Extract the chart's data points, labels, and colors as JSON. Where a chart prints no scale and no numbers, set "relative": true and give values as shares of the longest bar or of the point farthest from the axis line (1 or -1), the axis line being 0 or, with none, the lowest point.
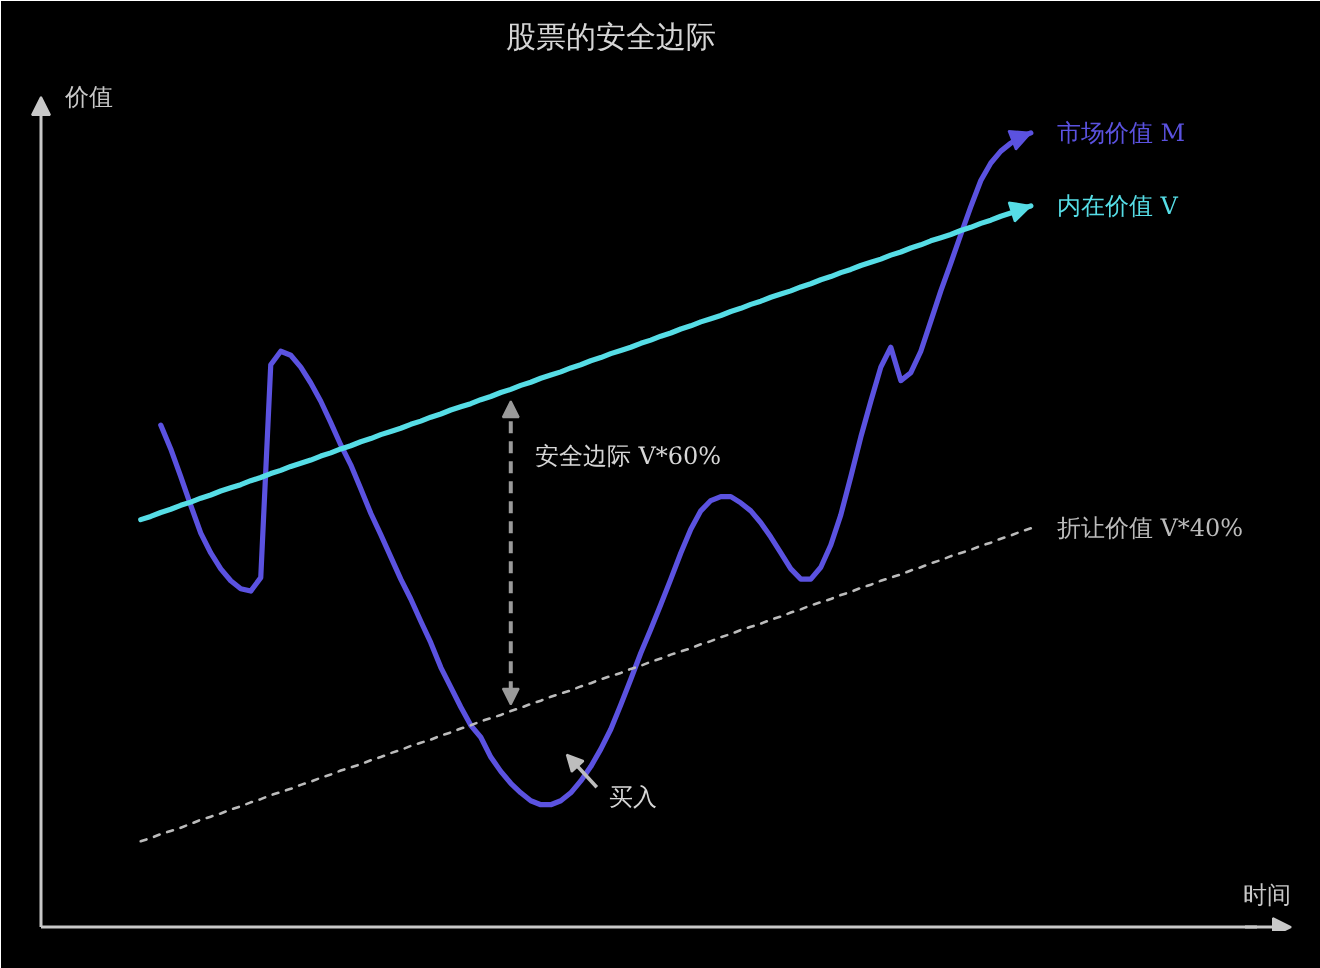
{
  "chart_data": {
    "type": "line",
    "title": "股票的安全边际",
    "ylabel": "价值",
    "relative": true,
    "categories": [
      null,
      null,
      null,
      null,
      null,
      null,
      null,
      null,
      null,
      null,
      null,
      null,
      null,
      null,
      null,
      null,
      null,
      null,
      null,
      null,
      null,
      null,
      null,
      null,
      null,
      null,
      null,
      null,
      null,
      null,
      null,
      null,
      null,
      null,
      null,
      null,
      null,
      null,
      null,
      null,
      null,
      null,
      null,
      null,
      null,
      null,
      null,
      null,
      null,
      null,
      null,
      null,
      null,
      null,
      null,
      null,
      null,
      null,
      null,
      null,
      null,
      null,
      null,
      null,
      null,
      null,
      null,
      null,
      null,
      null,
      null,
      null,
      null,
      null,
      null,
      null,
      null,
      null,
      null,
      null,
      null,
      null,
      null,
      null,
      null,
      null,
      null,
      null,
      null,
      null
    ],
    "series": [
      {
        "name": "市场价值 M",
        "color": "#5b52e0",
        "values": [
          null,
          null,
          0.632,
          0.602,
          0.567,
          0.531,
          0.496,
          0.471,
          0.451,
          0.436,
          0.426,
          0.423,
          0.44,
          0.708,
          0.725,
          0.72,
          0.705,
          0.685,
          0.662,
          0.635,
          0.607,
          0.582,
          0.552,
          0.521,
          0.494,
          0.466,
          0.438,
          0.413,
          0.385,
          0.358,
          0.327,
          0.302,
          0.277,
          0.254,
          0.239,
          0.214,
          0.196,
          0.181,
          0.169,
          0.159,
          0.154,
          0.154,
          0.159,
          0.169,
          0.184,
          0.202,
          0.224,
          0.249,
          0.28,
          0.312,
          0.345,
          0.375,
          0.406,
          0.438,
          0.471,
          0.501,
          0.524,
          0.537,
          0.542,
          0.542,
          0.534,
          0.524,
          0.509,
          0.491,
          0.471,
          0.451,
          0.438,
          0.438,
          0.453,
          0.481,
          0.519,
          0.567,
          0.617,
          0.662,
          0.705,
          0.73,
          0.688,
          0.698,
          0.725,
          0.763,
          0.801,
          0.836,
          0.872,
          0.907,
          0.94,
          0.962,
          0.977,
          0.987,
          0.995,
          1.0
        ]
      },
      {
        "name": "内在价值 V",
        "color": "#56dde6",
        "values": [
          0.513,
          0.517,
          0.522,
          0.526,
          0.531,
          0.535,
          0.54,
          0.544,
          0.549,
          0.553,
          0.557,
          0.562,
          0.566,
          0.571,
          0.575,
          0.58,
          0.584,
          0.588,
          0.593,
          0.597,
          0.602,
          0.606,
          0.611,
          0.615,
          0.62,
          0.624,
          0.628,
          0.633,
          0.637,
          0.642,
          0.646,
          0.651,
          0.655,
          0.659,
          0.664,
          0.668,
          0.673,
          0.677,
          0.682,
          0.686,
          0.691,
          0.695,
          0.699,
          0.704,
          0.708,
          0.713,
          0.717,
          0.722,
          0.726,
          0.73,
          0.735,
          0.739,
          0.744,
          0.748,
          0.753,
          0.757,
          0.762,
          0.766,
          0.77,
          0.775,
          0.779,
          0.784,
          0.788,
          0.793,
          0.797,
          0.801,
          0.806,
          0.81,
          0.815,
          0.819,
          0.824,
          0.828,
          0.833,
          0.837,
          0.841,
          0.846,
          0.85,
          0.855,
          0.859,
          0.864,
          0.868,
          0.872,
          0.877,
          0.881,
          0.886,
          0.89,
          0.895,
          0.899,
          0.904,
          0.908
        ]
      },
      {
        "name": "折让价值 V*40%",
        "color": "#bbbbbb",
        "line_style": "dotted",
        "values": [
          0.108,
          0.112,
          0.117,
          0.121,
          0.125,
          0.13,
          0.135,
          0.139,
          0.143,
          0.148,
          0.152,
          0.157,
          0.161,
          0.166,
          0.17,
          0.174,
          0.179,
          0.183,
          0.188,
          0.192,
          0.197,
          0.201,
          0.205,
          0.21,
          0.214,
          0.219,
          0.223,
          0.228,
          0.232,
          0.236,
          0.241,
          0.245,
          0.25,
          0.254,
          0.259,
          0.263,
          0.267,
          0.272,
          0.276,
          0.281,
          0.285,
          0.29,
          0.294,
          0.298,
          0.303,
          0.307,
          0.312,
          0.316,
          0.32,
          0.325,
          0.329,
          0.334,
          0.338,
          0.343,
          0.347,
          0.351,
          0.356,
          0.36,
          0.365,
          0.369,
          0.374,
          0.378,
          0.382,
          0.387,
          0.391,
          0.396,
          0.4,
          0.405,
          0.409,
          0.413,
          0.418,
          0.422,
          0.427,
          0.431,
          0.436,
          0.44,
          0.444,
          0.449,
          0.453,
          0.458,
          0.462,
          0.467,
          0.471,
          0.475,
          0.48,
          0.484,
          0.489,
          0.493,
          0.498,
          0.502
        ]
      }
    ],
    "annotations": [
      "安全边际 V*60%",
      "买入",
      "时间"
    ]
  }
}
